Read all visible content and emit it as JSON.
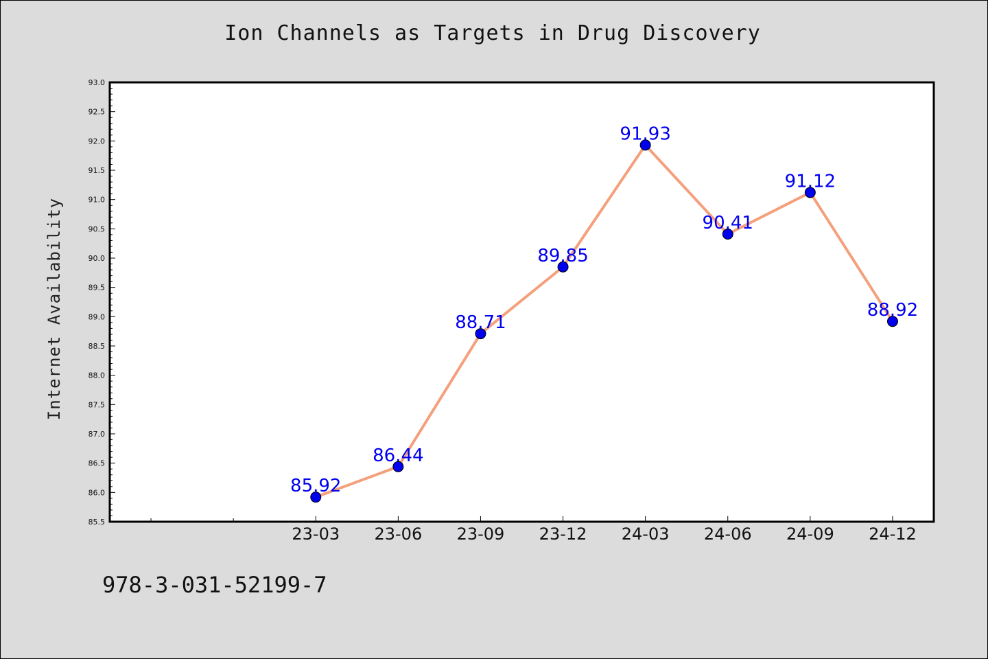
{
  "chart_data": {
    "type": "line",
    "title": "Ion Channels as Targets in Drug Discovery",
    "xlabel": "",
    "ylabel": "Internet Availability",
    "categories": [
      "23-03",
      "23-06",
      "23-09",
      "23-12",
      "24-03",
      "24-06",
      "24-09",
      "24-12"
    ],
    "series": [
      {
        "values": [
          85.92,
          86.44,
          88.71,
          89.85,
          91.93,
          90.41,
          91.12,
          88.92
        ],
        "labels": [
          "85.92",
          "86.44",
          "88.71",
          "89.85",
          "91.93",
          "90.41",
          "91.12",
          "88.92"
        ],
        "line_color": "#f4a07c",
        "marker_color": "#0000ee",
        "label_color": "#0000ee"
      }
    ],
    "ylim": [
      85.5,
      93.0
    ],
    "y_ticks": [
      "85.5",
      "86.0",
      "86.5",
      "87.0",
      "87.5",
      "88.0",
      "88.5",
      "89.0",
      "89.5",
      "90.0",
      "90.5",
      "91.0",
      "91.5",
      "92.0",
      "92.5",
      "93.0"
    ],
    "grid": false,
    "legend": "none"
  },
  "footer": {
    "code": "978-3-031-52199-7"
  }
}
